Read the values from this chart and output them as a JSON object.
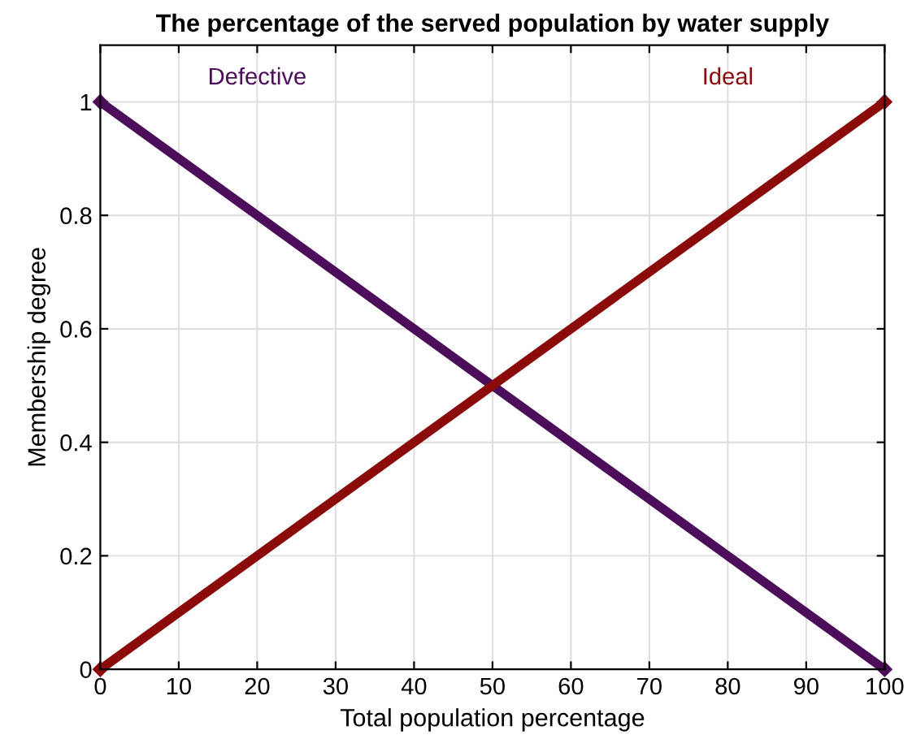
{
  "chart_data": {
    "type": "line",
    "title": "The percentage of the served population by water supply",
    "xlabel": "Total population percentage",
    "ylabel": "Membership degree",
    "x": [
      0,
      100
    ],
    "series": [
      {
        "name": "Defective",
        "color": "#4c0d5a",
        "values": [
          1,
          0
        ]
      },
      {
        "name": "Ideal",
        "color": "#8b0a0a",
        "values": [
          0,
          1
        ]
      }
    ],
    "xlim": [
      0,
      100
    ],
    "xticks": [
      0,
      10,
      20,
      30,
      40,
      50,
      60,
      70,
      80,
      90,
      100
    ],
    "ylim": [
      0,
      1.1
    ],
    "yticks": [
      0,
      0.2,
      0.4,
      0.6,
      0.8,
      1
    ],
    "grid": true,
    "line_style": "solid",
    "marker": "diamond"
  }
}
